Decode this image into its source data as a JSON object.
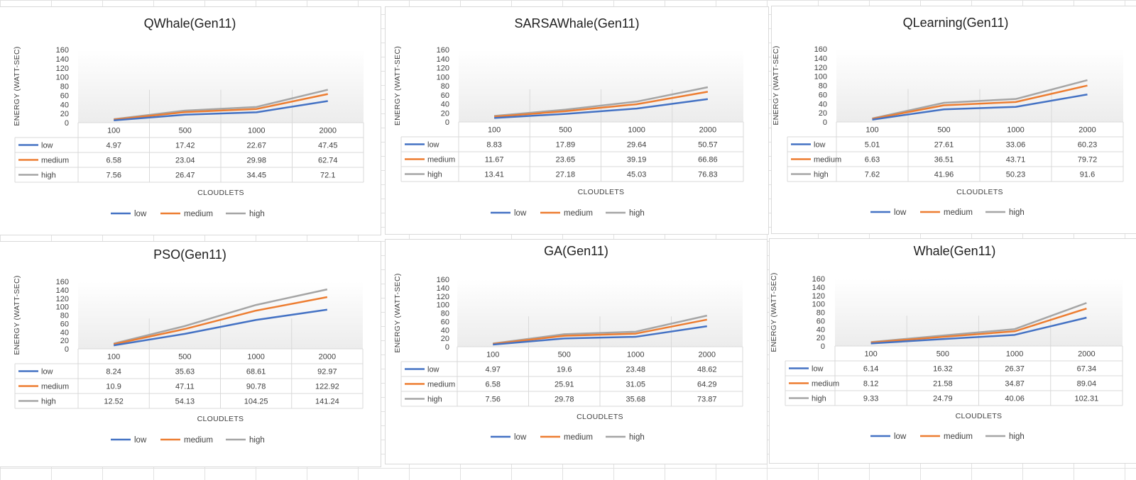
{
  "colors": {
    "low": "#4472c4",
    "medium": "#ed7d31",
    "high": "#a5a5a5"
  },
  "chart_data": [
    {
      "type": "line",
      "title": "QWhale(Gen11)",
      "xlabel": "CLOUDLETS",
      "ylabel": "ENERGY (WATT-SEC)",
      "ylim": [
        0,
        160
      ],
      "yticks": [
        "0",
        "20",
        "40",
        "60",
        "80",
        "100",
        "120",
        "140",
        "160"
      ],
      "categories": [
        "100",
        "500",
        "1000",
        "2000"
      ],
      "series": [
        {
          "name": "low",
          "values": [
            4.97,
            17.42,
            22.67,
            47.45
          ]
        },
        {
          "name": "medium",
          "values": [
            6.58,
            23.04,
            29.98,
            62.74
          ]
        },
        {
          "name": "high",
          "values": [
            7.56,
            26.47,
            34.45,
            72.1
          ]
        }
      ],
      "data_table": true,
      "legend_position": "bottom"
    },
    {
      "type": "line",
      "title": "SARSAWhale(Gen11)",
      "xlabel": "CLOUDLETS",
      "ylabel": "ENERGY (WATT-SEC)",
      "ylim": [
        0,
        160
      ],
      "yticks": [
        "0",
        "20",
        "40",
        "60",
        "80",
        "100",
        "120",
        "140",
        "160"
      ],
      "categories": [
        "100",
        "500",
        "1000",
        "2000"
      ],
      "series": [
        {
          "name": "low",
          "values": [
            8.83,
            17.89,
            29.64,
            50.57
          ]
        },
        {
          "name": "medium",
          "values": [
            11.67,
            23.65,
            39.19,
            66.86
          ]
        },
        {
          "name": "high",
          "values": [
            13.41,
            27.18,
            45.03,
            76.83
          ]
        }
      ],
      "data_table": true,
      "legend_position": "bottom"
    },
    {
      "type": "line",
      "title": "QLearning(Gen11)",
      "xlabel": "CLOUDLETS",
      "ylabel": "ENERGY (WATT-SEC)",
      "ylim": [
        0,
        160
      ],
      "yticks": [
        "0",
        "20",
        "40",
        "60",
        "80",
        "100",
        "120",
        "140",
        "160"
      ],
      "categories": [
        "100",
        "500",
        "1000",
        "2000"
      ],
      "series": [
        {
          "name": "low",
          "values": [
            5.01,
            27.61,
            33.06,
            60.23
          ]
        },
        {
          "name": "medium",
          "values": [
            6.63,
            36.51,
            43.71,
            79.72
          ]
        },
        {
          "name": "high",
          "values": [
            7.62,
            41.96,
            50.23,
            91.6
          ]
        }
      ],
      "data_table": true,
      "legend_position": "bottom"
    },
    {
      "type": "line",
      "title": "PSO(Gen11)",
      "xlabel": "CLOUDLETS",
      "ylabel": "ENERGY (WATT-SEC)",
      "ylim": [
        0,
        160
      ],
      "yticks": [
        "0",
        "20",
        "40",
        "60",
        "80",
        "100",
        "120",
        "140",
        "160"
      ],
      "categories": [
        "100",
        "500",
        "1000",
        "2000"
      ],
      "series": [
        {
          "name": "low",
          "values": [
            8.24,
            35.63,
            68.61,
            92.97
          ]
        },
        {
          "name": "medium",
          "values": [
            10.9,
            47.11,
            90.78,
            122.92
          ]
        },
        {
          "name": "high",
          "values": [
            12.52,
            54.13,
            104.25,
            141.24
          ]
        }
      ],
      "data_table": true,
      "legend_position": "bottom"
    },
    {
      "type": "line",
      "title": "GA(Gen11)",
      "xlabel": "CLOUDLETS",
      "ylabel": "ENERGY (WATT-SEC)",
      "ylim": [
        0,
        160
      ],
      "yticks": [
        "0",
        "20",
        "40",
        "60",
        "80",
        "100",
        "120",
        "140",
        "160"
      ],
      "categories": [
        "100",
        "500",
        "1000",
        "2000"
      ],
      "series": [
        {
          "name": "low",
          "values": [
            4.97,
            19.6,
            23.48,
            48.62
          ]
        },
        {
          "name": "medium",
          "values": [
            6.58,
            25.91,
            31.05,
            64.29
          ]
        },
        {
          "name": "high",
          "values": [
            7.56,
            29.78,
            35.68,
            73.87
          ]
        }
      ],
      "data_table": true,
      "legend_position": "bottom"
    },
    {
      "type": "line",
      "title": "Whale(Gen11)",
      "xlabel": "CLOUDLETS",
      "ylabel": "ENERGY (WATT-SEC)",
      "ylim": [
        0,
        160
      ],
      "yticks": [
        "0",
        "20",
        "40",
        "60",
        "80",
        "100",
        "120",
        "140",
        "160"
      ],
      "categories": [
        "100",
        "500",
        "1000",
        "2000"
      ],
      "series": [
        {
          "name": "low",
          "values": [
            6.14,
            16.32,
            26.37,
            67.34
          ]
        },
        {
          "name": "medium",
          "values": [
            8.12,
            21.58,
            34.87,
            89.04
          ]
        },
        {
          "name": "high",
          "values": [
            9.33,
            24.79,
            40.06,
            102.31
          ]
        }
      ],
      "data_table": true,
      "legend_position": "bottom"
    }
  ]
}
